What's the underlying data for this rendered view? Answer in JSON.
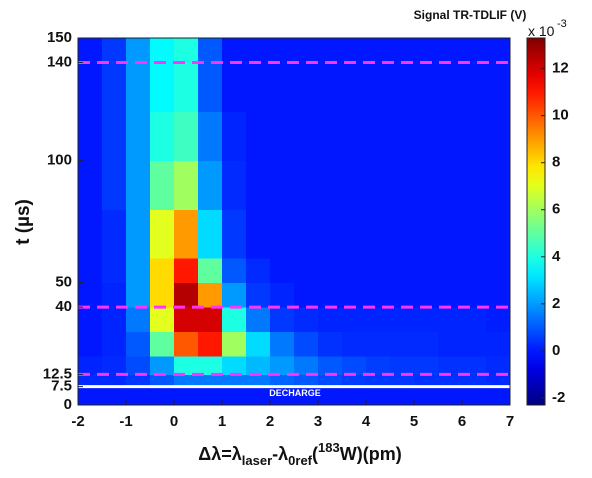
{
  "chart_data": {
    "type": "heatmap",
    "title": "Signal TR-TDLIF (V)",
    "colorbar_multiplier": "x 10",
    "colorbar_exponent": "-3",
    "y_label": "t (µs)",
    "x_label_parts": [
      {
        "text": "Δλ=λ",
        "style": "normal"
      },
      {
        "text": "laser",
        "style": "sub"
      },
      {
        "text": "-λ",
        "style": "normal"
      },
      {
        "text": "0ref",
        "style": "sub"
      },
      {
        "text": "(",
        "style": "normal"
      },
      {
        "text": "183",
        "style": "sup"
      },
      {
        "text": "W)(pm)",
        "style": "normal"
      }
    ],
    "annotation": "DECHARGE",
    "xlim": [
      -2,
      7
    ],
    "xticks": [
      -2,
      -1,
      0,
      1,
      2,
      3,
      4,
      5,
      6,
      7
    ],
    "ylim": [
      0,
      150
    ],
    "yticks": [
      0,
      7.5,
      12.5,
      40,
      50,
      100,
      140,
      150
    ],
    "zlim": [
      -2.3,
      13.3
    ],
    "zticks": [
      -2,
      0,
      2,
      4,
      6,
      8,
      10,
      12
    ],
    "colormap": "jet",
    "x_edges": [
      -2,
      -1.5,
      -1,
      -0.5,
      0,
      0.5,
      1,
      1.5,
      2,
      2.5,
      3,
      3.5,
      4,
      4.5,
      5,
      5.5,
      6,
      6.5,
      7
    ],
    "t_edges": [
      0,
      7.5,
      12.5,
      20,
      30,
      40,
      50,
      60,
      80,
      100,
      120,
      140,
      150
    ],
    "z": [
      [
        0,
        0,
        0,
        0,
        0,
        0,
        0,
        0,
        0,
        0,
        0,
        0,
        0,
        0,
        0,
        0,
        0,
        0
      ],
      [
        0.3,
        0.3,
        0.5,
        1,
        1.5,
        1.5,
        1.5,
        1.5,
        1.2,
        1,
        0.8,
        0.6,
        0.5,
        0.5,
        0.4,
        0.4,
        0.4,
        0.3
      ],
      [
        0.2,
        0.3,
        0.8,
        2,
        4,
        4,
        3,
        2.5,
        2,
        1.5,
        1,
        0.8,
        0.6,
        0.5,
        0.5,
        0.4,
        0.4,
        0.3
      ],
      [
        0,
        0.2,
        1,
        5,
        10,
        11,
        6,
        3,
        1.5,
        0.8,
        0.4,
        0.3,
        0.3,
        0.3,
        0.3,
        0.2,
        0.2,
        0.2
      ],
      [
        0,
        0.2,
        1.5,
        7,
        12,
        12,
        4,
        1.5,
        0.5,
        0.3,
        0.2,
        0.2,
        0.2,
        0.2,
        0.2,
        0.2,
        0.2,
        0.1
      ],
      [
        0,
        0.2,
        2,
        8,
        12.5,
        9,
        2,
        0.5,
        0.2,
        0,
        0,
        0,
        0,
        0,
        0,
        0,
        0,
        0
      ],
      [
        0,
        0.3,
        2,
        8,
        11,
        5,
        1,
        0.3,
        0,
        0,
        0,
        0,
        0,
        0,
        0,
        0,
        0,
        0
      ],
      [
        0,
        0.3,
        2,
        7,
        9,
        3,
        0.5,
        0,
        0,
        0,
        0,
        0,
        0,
        0,
        0,
        0,
        0,
        0
      ],
      [
        0,
        0.5,
        2,
        5,
        6,
        2,
        0.3,
        0,
        0,
        0,
        0,
        0,
        0,
        0,
        0,
        0,
        0,
        0
      ],
      [
        0,
        0.5,
        2,
        4,
        4.5,
        1.5,
        0.2,
        0,
        0,
        0,
        0,
        0,
        0,
        0,
        0,
        0,
        0,
        0
      ],
      [
        0,
        0.5,
        2,
        3.5,
        4,
        1,
        0,
        0,
        0,
        0,
        0,
        0,
        0,
        0,
        0,
        0,
        0,
        0
      ],
      [
        0,
        0.5,
        2,
        3.5,
        4,
        1,
        0,
        0,
        0,
        0,
        0,
        0,
        0,
        0,
        0,
        0,
        0,
        0
      ]
    ],
    "lines": [
      {
        "t": 7.5,
        "color": "#ffffff",
        "style": "solid"
      },
      {
        "t": 12.5,
        "color": "#ff33ff",
        "style": "dashed"
      },
      {
        "t": 40,
        "color": "#ff33ff",
        "style": "dashed"
      },
      {
        "t": 140,
        "color": "#ff33ff",
        "style": "dashed"
      }
    ]
  }
}
